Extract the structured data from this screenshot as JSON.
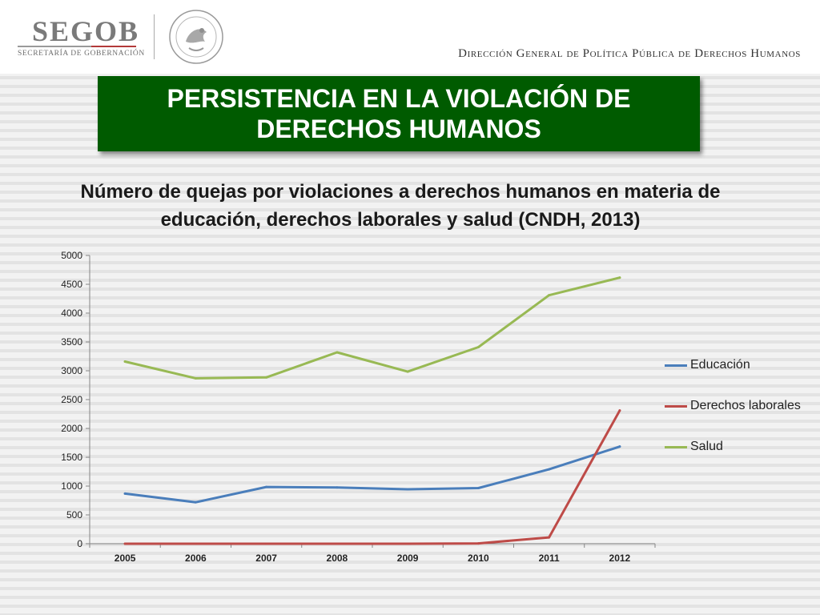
{
  "header": {
    "logo_word": "SEGOB",
    "logo_sub": "SECRETARÍA DE GOBERNACIÓN",
    "department": "Dirección General de Política Pública de Derechos Humanos"
  },
  "slide": {
    "title": "PERSISTENCIA EN LA VIOLACIÓN DE DERECHOS HUMANOS"
  },
  "chart_data": {
    "type": "line",
    "title": "Número de quejas por violaciones a derechos humanos en materia de educación, derechos laborales y salud (CNDH, 2013)",
    "xlabel": "",
    "ylabel": "",
    "x": [
      "2005",
      "2006",
      "2007",
      "2008",
      "2009",
      "2010",
      "2011",
      "2012"
    ],
    "ylim": [
      0,
      5000
    ],
    "yticks": [
      0,
      500,
      1000,
      1500,
      2000,
      2500,
      3000,
      3500,
      4000,
      4500,
      5000
    ],
    "grid": false,
    "legend_position": "right",
    "series": [
      {
        "name": "Educación",
        "color": "#4a7ebb",
        "values": [
          870,
          720,
          985,
          975,
          945,
          965,
          1290,
          1685
        ]
      },
      {
        "name": "Derechos laborales",
        "color": "#be4b48",
        "values": [
          0,
          0,
          0,
          0,
          0,
          5,
          110,
          2310
        ]
      },
      {
        "name": "Salud",
        "color": "#98b954",
        "values": [
          3160,
          2870,
          2885,
          3320,
          2985,
          3410,
          4310,
          4615
        ]
      }
    ]
  }
}
